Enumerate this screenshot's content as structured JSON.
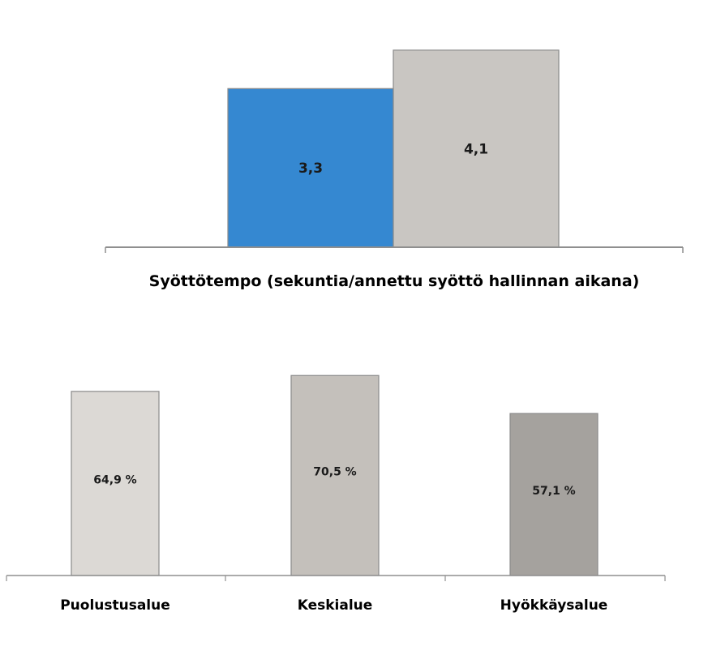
{
  "chart_data": [
    {
      "type": "bar",
      "xlabel": "Syöttötempo (sekuntia/annettu syöttö hallinnan aikana)",
      "values": [
        3.3,
        4.1
      ],
      "value_labels": [
        "3,3",
        "4,1"
      ],
      "colors": [
        "#3588d1",
        "#c9c6c2"
      ],
      "ylim": [
        0,
        4.3
      ],
      "grid": false
    },
    {
      "type": "bar",
      "categories": [
        "Puolustusalue",
        "Keskialue",
        "Hyökkäysalue"
      ],
      "values": [
        64.9,
        70.5,
        57.1
      ],
      "value_labels": [
        "64,9 %",
        "70,5 %",
        "57,1 %"
      ],
      "colors": [
        "#dcd9d5",
        "#c4c0bb",
        "#a5a29e"
      ],
      "ylim": [
        0,
        78
      ],
      "grid": false
    }
  ]
}
